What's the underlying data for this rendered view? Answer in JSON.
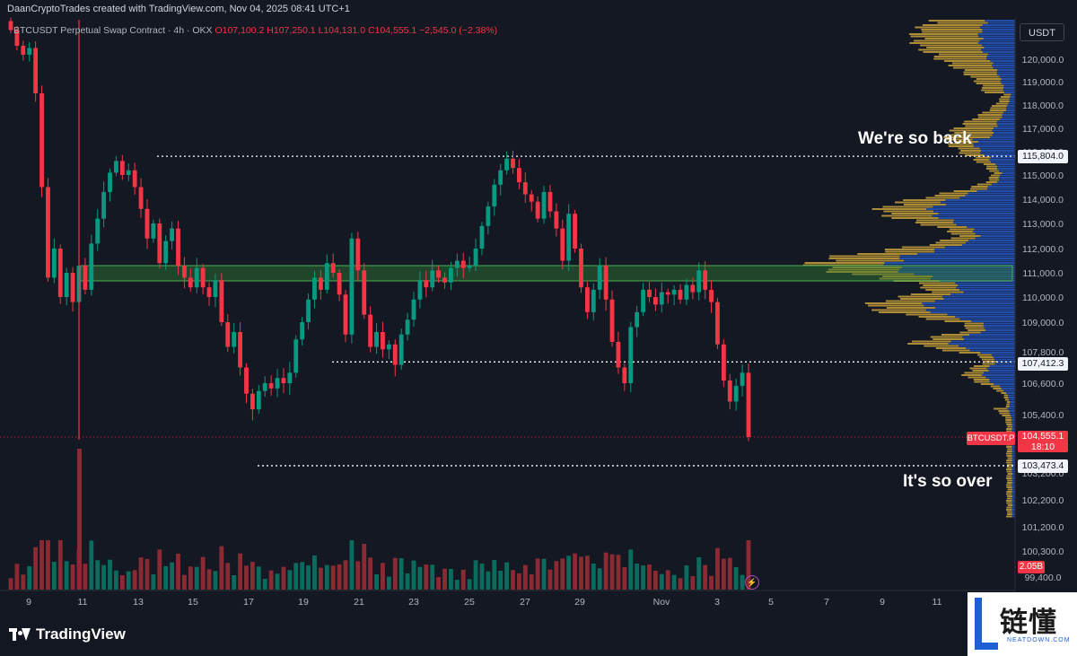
{
  "header": {
    "credit": "DaanCryptoTrades created with TradingView.com, Nov 04, 2025 08:41 UTC+1",
    "symbol_line": "BTCUSDT Perpetual Swap Contract · 4h · OKX",
    "ohlc": "O107,100.2 H107,250.1 L104,131.0 C104,555.1 −2,545.0 (−2.38%)"
  },
  "currency_button": "USDT",
  "annotations": {
    "top": "We're so back",
    "bottom": "It's so over"
  },
  "labels": {
    "resistance": "115,804.0",
    "support_mid": "107,412.3",
    "support_low": "103,473.4",
    "symbol_tag": "BTCUSDT.P",
    "current_price": "104,555.1",
    "countdown": "18:10",
    "volume": "2.05B"
  },
  "footer": {
    "brand": "TradingView"
  },
  "watermark": {
    "cn": "链懂",
    "en": "NEATDOWN.COM"
  },
  "chart_data": {
    "type": "candlestick",
    "timeframe": "4h",
    "exchange": "OKX",
    "y_ticks": [
      120000,
      119000,
      118000,
      117000,
      116000,
      115000,
      114000,
      113000,
      112000,
      111000,
      110000,
      109000,
      107800,
      106600,
      105400,
      103200,
      102200,
      101200,
      100300,
      99400
    ],
    "y_range": [
      99300,
      121500
    ],
    "x_ticks": [
      "9",
      "11",
      "13",
      "15",
      "17",
      "19",
      "21",
      "23",
      "25",
      "27",
      "29",
      "Nov",
      "3",
      "5",
      "7",
      "9",
      "11"
    ],
    "key_levels": [
      {
        "label": "We're so back",
        "value": 115804.0
      },
      {
        "value": 107412.3
      },
      {
        "label": "It's so over",
        "value": 103473.4
      }
    ],
    "zone": [
      110800,
      111300
    ],
    "current_price": 104555.1,
    "closes": [
      121300,
      120600,
      120200,
      120500,
      118500,
      114500,
      110800,
      112000,
      110000,
      111000,
      109800,
      111300,
      110300,
      112200,
      113200,
      114300,
      115100,
      115600,
      115000,
      115200,
      114500,
      113600,
      112400,
      113000,
      111400,
      112300,
      112800,
      111300,
      110800,
      110400,
      111200,
      110400,
      110000,
      110700,
      109000,
      108000,
      108600,
      107200,
      106200,
      105600,
      106300,
      106600,
      106400,
      106800,
      106600,
      107000,
      108300,
      109000,
      109900,
      110800,
      110300,
      111400,
      111000,
      110100,
      108500,
      112400,
      111100,
      109300,
      108000,
      108600,
      107900,
      108100,
      107300,
      108500,
      109100,
      109900,
      110700,
      110400,
      111100,
      110800,
      110600,
      111200,
      111500,
      111200,
      111300,
      112000,
      112900,
      113700,
      114600,
      115200,
      115700,
      115300,
      114700,
      114200,
      113900,
      113200,
      114300,
      113500,
      112800,
      111500,
      113400,
      112000,
      110400,
      109400,
      110300,
      111300,
      109900,
      108200,
      107200,
      106600,
      108800,
      109400,
      110300,
      110000,
      109700,
      110200,
      110100,
      110300,
      109900,
      110500,
      110200,
      111100,
      110300,
      109800,
      108100,
      106700,
      105900,
      106500,
      107000,
      104555
    ]
  }
}
